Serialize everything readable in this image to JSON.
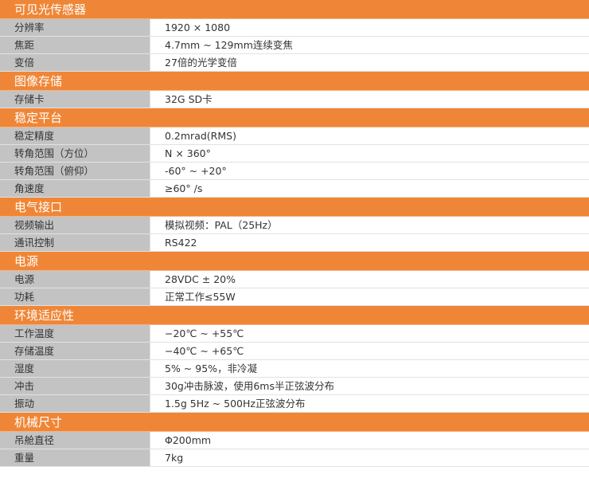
{
  "colors": {
    "section_header": "#ef8637",
    "label_cell": "#c3c3c3",
    "value_cell": "#ffffff"
  },
  "sections": [
    {
      "title": "可见光传感器",
      "rows": [
        {
          "label": "分辨率",
          "value": "1920 × 1080"
        },
        {
          "label": "焦距",
          "value": "4.7mm ~ 129mm连续变焦"
        },
        {
          "label": "变倍",
          "value": "27倍的光学变倍"
        }
      ]
    },
    {
      "title": "图像存储",
      "rows": [
        {
          "label": "存储卡",
          "value": "32G SD卡"
        }
      ]
    },
    {
      "title": "稳定平台",
      "rows": [
        {
          "label": "稳定精度",
          "value": "0.2mrad(RMS)"
        },
        {
          "label": "转角范围（方位）",
          "value": "N × 360°"
        },
        {
          "label": "转角范围（俯仰）",
          "value": "-60°  ~ +20°"
        },
        {
          "label": "角速度",
          "value": "≥60°  /s"
        }
      ]
    },
    {
      "title": "电气接口",
      "rows": [
        {
          "label": "视频输出",
          "value": "模拟视频：PAL（25Hz）"
        },
        {
          "label": "通讯控制",
          "value": "RS422"
        }
      ]
    },
    {
      "title": "电源",
      "rows": [
        {
          "label": "电源",
          "value": "28VDC ± 20%"
        },
        {
          "label": "功耗",
          "value": "正常工作≤55W"
        }
      ]
    },
    {
      "title": "环境适应性",
      "rows": [
        {
          "label": "工作温度",
          "value": "−20℃ ~ +55℃"
        },
        {
          "label": "存储温度",
          "value": "−40℃ ~ +65℃"
        },
        {
          "label": "湿度",
          "value": "5% ~ 95%，非冷凝"
        },
        {
          "label": "冲击",
          "value": "30g冲击脉波，使用6ms半正弦波分布"
        },
        {
          "label": "振动",
          "value": "1.5g 5Hz ~ 500Hz正弦波分布"
        }
      ]
    },
    {
      "title": "机械尺寸",
      "rows": [
        {
          "label": "吊舱直径",
          "value": "Φ200mm"
        },
        {
          "label": "重量",
          "value": "7kg"
        }
      ]
    }
  ]
}
